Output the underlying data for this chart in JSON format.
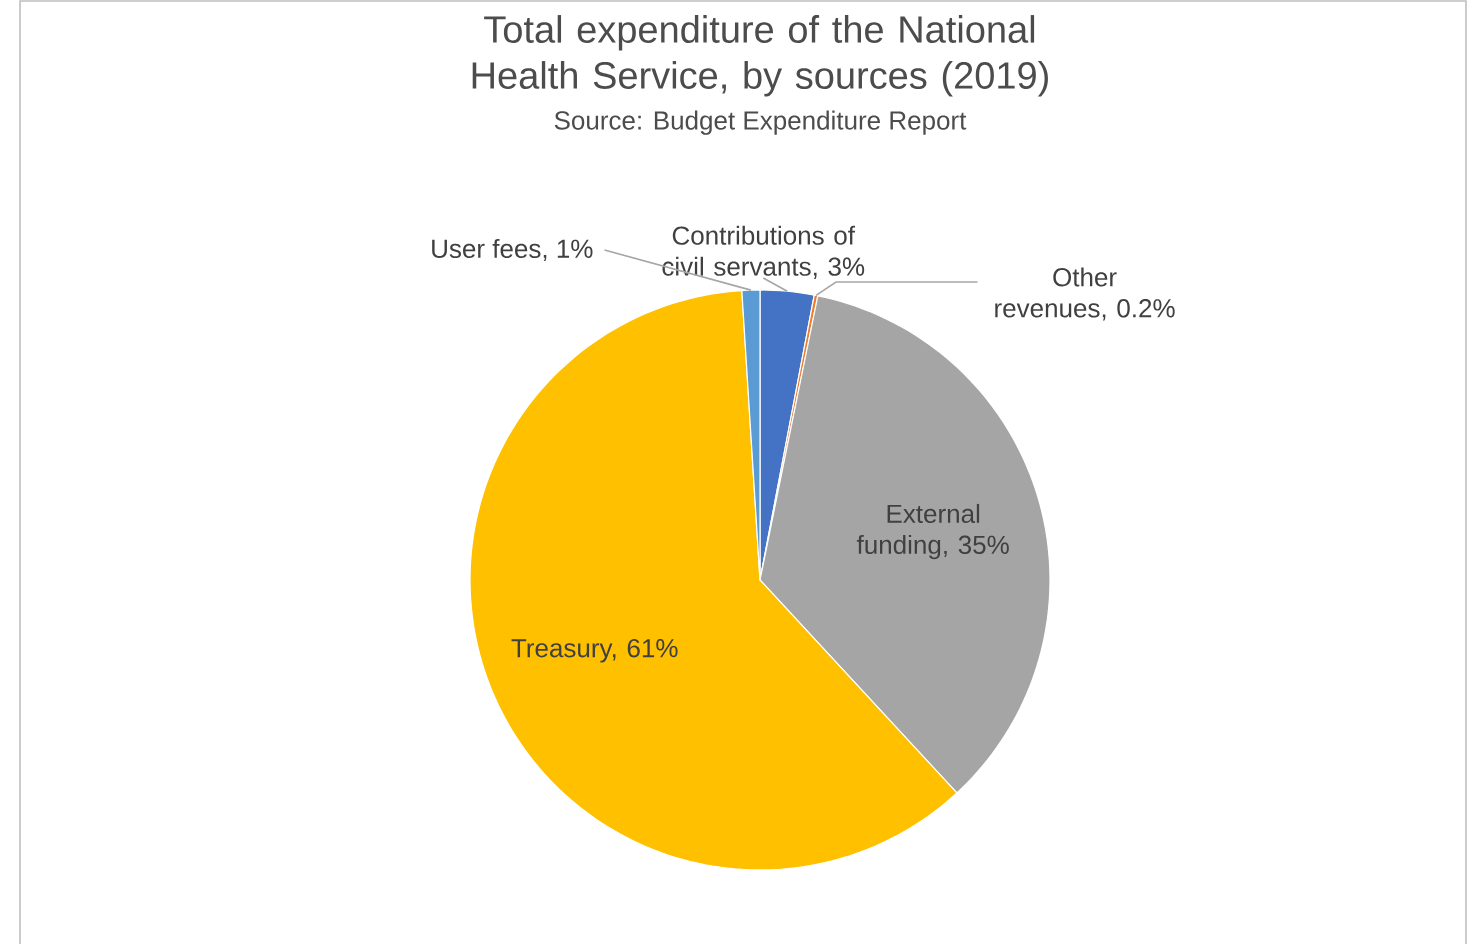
{
  "chart_data": {
    "type": "pie",
    "title": "Total expenditure of the National Health Service, by sources (2019)",
    "annotations": [
      "Source: Budget Expenditure Report"
    ],
    "categories": [
      "Contributions of civil servants, 3%",
      "Other revenues, 0.2%",
      "External funding, 35%",
      "Treasury, 61%",
      "User fees, 1%"
    ],
    "values": [
      3,
      0.2,
      35,
      61,
      1
    ],
    "colors": [
      "#4472c4",
      "#ed7d31",
      "#a5a5a5",
      "#ffc000",
      "#5b9bd5"
    ]
  }
}
